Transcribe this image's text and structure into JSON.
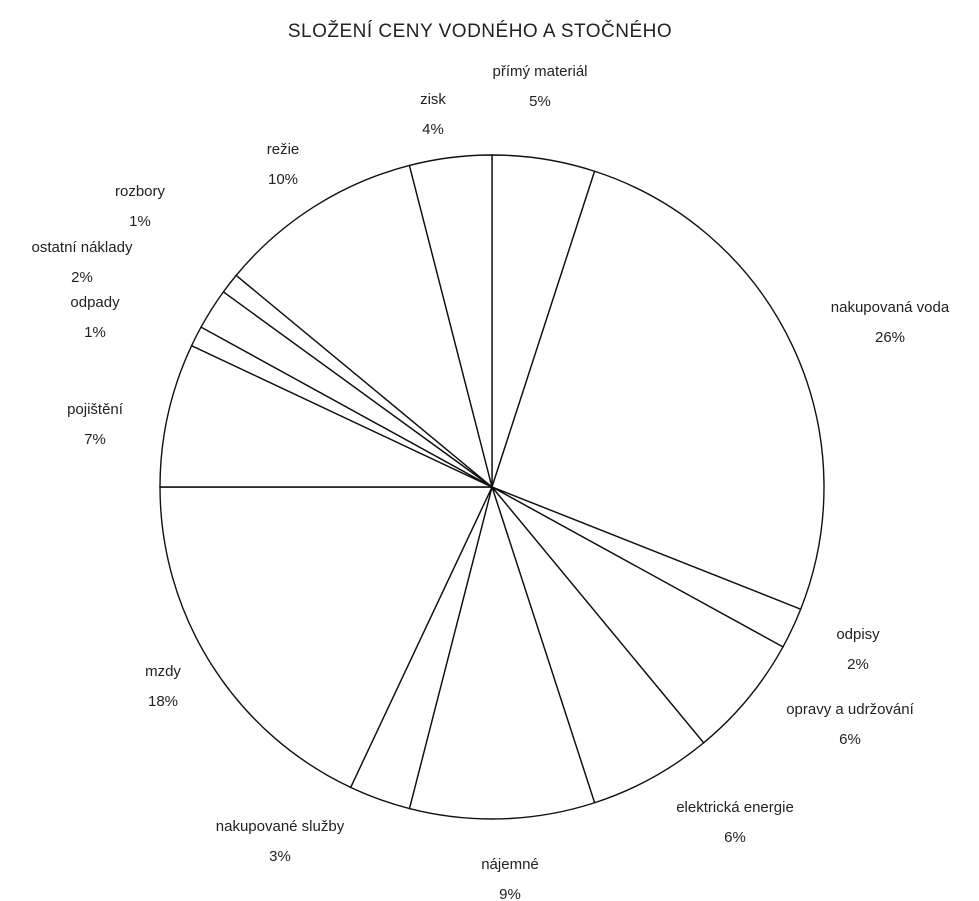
{
  "chart_data": {
    "type": "pie",
    "title": "SLOŽENÍ CENY VODNÉHO A STOČNÉHO",
    "categories": [
      "přímý materiál",
      "nakupovaná voda",
      "odpisy",
      "opravy a udržování",
      "elektrická energie",
      "nájemné",
      "nakupované služby",
      "mzdy",
      "pojištění",
      "odpady",
      "ostatní náklady",
      "rozbory",
      "režie",
      "zisk"
    ],
    "values": [
      5,
      26,
      2,
      6,
      6,
      9,
      3,
      18,
      7,
      1,
      2,
      1,
      10,
      4
    ],
    "value_labels": [
      "5%",
      "26%",
      "2%",
      "6%",
      "6%",
      "9%",
      "3%",
      "18%",
      "7%",
      "1%",
      "2%",
      "1%",
      "10%",
      "4%"
    ],
    "color": "#ffffff"
  }
}
